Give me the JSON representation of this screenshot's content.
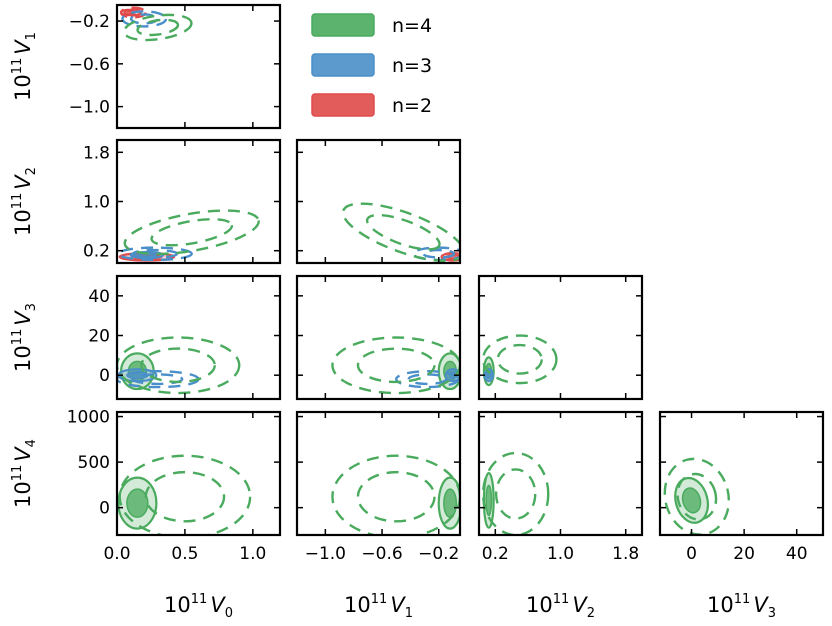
{
  "chart_data": {
    "type": "corner-contour",
    "title": "",
    "parameters": [
      "V_0",
      "V_1",
      "V_2",
      "V_3",
      "V_4"
    ],
    "axis_labels": {
      "V_0": {
        "base": "10",
        "exp": "11",
        "sym": "V",
        "sub": "0"
      },
      "V_1": {
        "base": "10",
        "exp": "11",
        "sym": "V",
        "sub": "1"
      },
      "V_2": {
        "base": "10",
        "exp": "11",
        "sym": "V",
        "sub": "2"
      },
      "V_3": {
        "base": "10",
        "exp": "11",
        "sym": "V",
        "sub": "3"
      },
      "V_4": {
        "base": "10",
        "exp": "11",
        "sym": "V",
        "sub": "4"
      }
    },
    "ranges": {
      "V_0": [
        0.0,
        1.2
      ],
      "V_1": [
        -1.2,
        -0.05
      ],
      "V_2": [
        0.0,
        2.0
      ],
      "V_3": [
        -12,
        50
      ],
      "V_4": [
        -300,
        1050
      ]
    },
    "ticks": {
      "V_0": {
        "values": [
          0.0,
          0.5,
          1.0
        ],
        "labels": [
          "0.0",
          "0.5",
          "1.0"
        ]
      },
      "V_1": {
        "values": [
          -1.0,
          -0.6,
          -0.2
        ],
        "labels": [
          "−1.0",
          "−0.6",
          "−0.2"
        ]
      },
      "V_2": {
        "values": [
          0.2,
          1.0,
          1.8
        ],
        "labels": [
          "0.2",
          "1.0",
          "1.8"
        ]
      },
      "V_3": {
        "values": [
          0,
          20,
          40
        ],
        "labels": [
          "0",
          "20",
          "40"
        ]
      },
      "V_4": {
        "values": [
          0,
          500,
          1000
        ],
        "labels": [
          "0",
          "500",
          "1000"
        ]
      }
    },
    "legend": {
      "position": "top-center",
      "entries": [
        {
          "label": "n=4",
          "color": "#4aab5e"
        },
        {
          "label": "n=3",
          "color": "#4a8fc9"
        },
        {
          "label": "n=2",
          "color": "#e04a4a"
        }
      ]
    },
    "panels": [
      {
        "x": "V_0",
        "y": "V_1",
        "contours": [
          {
            "series": "n=2",
            "style": "filled",
            "cx": 0.08,
            "cy": -0.12,
            "sx": 0.05,
            "sy": 0.025,
            "rot": 0
          },
          {
            "series": "n=2",
            "style": "dashed",
            "cx": 0.12,
            "cy": -0.12,
            "sx": 0.09,
            "sy": 0.045,
            "rot": 0
          },
          {
            "series": "n=3",
            "style": "dashed",
            "cx": 0.2,
            "cy": -0.18,
            "sx": 0.16,
            "sy": 0.07,
            "rot": 0
          },
          {
            "series": "n=4",
            "style": "dashed",
            "cx": 0.3,
            "cy": -0.26,
            "sx": 0.25,
            "sy": 0.11,
            "rot": -8
          }
        ]
      },
      {
        "x": "V_0",
        "y": "V_2",
        "contours": [
          {
            "series": "n=2",
            "style": "filled",
            "cx": 0.22,
            "cy": 0.1,
            "sx": 0.2,
            "sy": 0.06,
            "rot": 0
          },
          {
            "series": "n=3",
            "style": "filled",
            "cx": 0.22,
            "cy": 0.13,
            "sx": 0.12,
            "sy": 0.05,
            "rot": 0
          },
          {
            "series": "n=3",
            "style": "dashed",
            "cx": 0.28,
            "cy": 0.15,
            "sx": 0.27,
            "sy": 0.1,
            "rot": 0
          },
          {
            "series": "n=4",
            "style": "dashed",
            "cx": 0.55,
            "cy": 0.5,
            "sx": 0.5,
            "sy": 0.3,
            "rot": -10
          }
        ]
      },
      {
        "x": "V_1",
        "y": "V_2",
        "contours": [
          {
            "series": "n=2",
            "style": "filled",
            "cx": -0.1,
            "cy": 0.1,
            "sx": 0.08,
            "sy": 0.06,
            "rot": 0
          },
          {
            "series": "n=3",
            "style": "dashed",
            "cx": -0.2,
            "cy": 0.15,
            "sx": 0.18,
            "sy": 0.1,
            "rot": 0
          },
          {
            "series": "n=4",
            "style": "dashed",
            "cx": -0.45,
            "cy": 0.5,
            "sx": 0.45,
            "sy": 0.32,
            "rot": 20
          }
        ]
      },
      {
        "x": "V_0",
        "y": "V_3",
        "contours": [
          {
            "series": "n=4",
            "style": "filled",
            "cx": 0.15,
            "cy": 2,
            "sx": 0.12,
            "sy": 9,
            "rot": 0
          },
          {
            "series": "n=3",
            "style": "filled",
            "cx": 0.15,
            "cy": 0,
            "sx": 0.14,
            "sy": 3,
            "rot": 0
          },
          {
            "series": "n=3",
            "style": "dashed",
            "cx": 0.3,
            "cy": -2,
            "sx": 0.3,
            "sy": 4,
            "rot": 0
          },
          {
            "series": "n=4",
            "style": "dashed",
            "cx": 0.45,
            "cy": 5,
            "sx": 0.45,
            "sy": 14,
            "rot": 0
          }
        ]
      },
      {
        "x": "V_1",
        "y": "V_3",
        "contours": [
          {
            "series": "n=4",
            "style": "filled",
            "cx": -0.12,
            "cy": 2,
            "sx": 0.08,
            "sy": 9,
            "rot": 0
          },
          {
            "series": "n=3",
            "style": "filled",
            "cx": -0.1,
            "cy": 0,
            "sx": 0.05,
            "sy": 3,
            "rot": 0
          },
          {
            "series": "n=3",
            "style": "dashed",
            "cx": -0.28,
            "cy": -2,
            "sx": 0.22,
            "sy": 4,
            "rot": 0
          },
          {
            "series": "n=4",
            "style": "dashed",
            "cx": -0.5,
            "cy": 5,
            "sx": 0.45,
            "sy": 14,
            "rot": 0
          }
        ]
      },
      {
        "x": "V_2",
        "y": "V_3",
        "contours": [
          {
            "series": "n=4",
            "style": "filled",
            "cx": 0.12,
            "cy": 2,
            "sx": 0.06,
            "sy": 7,
            "rot": 0
          },
          {
            "series": "n=3",
            "style": "filled",
            "cx": 0.12,
            "cy": 0,
            "sx": 0.05,
            "sy": 3,
            "rot": 0
          },
          {
            "series": "n=4",
            "style": "dashed",
            "cx": 0.5,
            "cy": 8,
            "sx": 0.45,
            "sy": 12,
            "rot": 0
          }
        ]
      },
      {
        "x": "V_0",
        "y": "V_4",
        "contours": [
          {
            "series": "n=4",
            "style": "filled",
            "cx": 0.15,
            "cy": 50,
            "sx": 0.14,
            "sy": 280,
            "rot": 0
          },
          {
            "series": "n=4",
            "style": "dashed",
            "cx": 0.5,
            "cy": 120,
            "sx": 0.48,
            "sy": 450,
            "rot": 0
          }
        ]
      },
      {
        "x": "V_1",
        "y": "V_4",
        "contours": [
          {
            "series": "n=4",
            "style": "filled",
            "cx": -0.12,
            "cy": 50,
            "sx": 0.08,
            "sy": 280,
            "rot": 0
          },
          {
            "series": "n=4",
            "style": "dashed",
            "cx": -0.5,
            "cy": 120,
            "sx": 0.45,
            "sy": 450,
            "rot": 0
          }
        ]
      },
      {
        "x": "V_2",
        "y": "V_4",
        "contours": [
          {
            "series": "n=4",
            "style": "filled",
            "cx": 0.12,
            "cy": 80,
            "sx": 0.06,
            "sy": 300,
            "rot": 0
          },
          {
            "series": "n=4",
            "style": "dashed",
            "cx": 0.45,
            "cy": 150,
            "sx": 0.4,
            "sy": 450,
            "rot": 0
          }
        ]
      },
      {
        "x": "V_3",
        "y": "V_4",
        "contours": [
          {
            "series": "n=4",
            "style": "filled",
            "cx": 0,
            "cy": 80,
            "sx": 6,
            "sy": 250,
            "rot": -15
          },
          {
            "series": "n=4",
            "style": "dashed",
            "cx": 2,
            "cy": 120,
            "sx": 12,
            "sy": 420,
            "rot": -15
          }
        ]
      }
    ]
  }
}
